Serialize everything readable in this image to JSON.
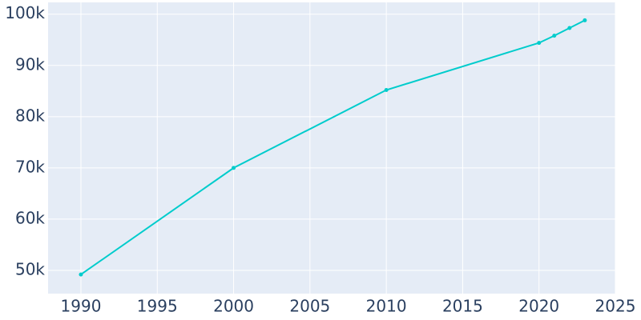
{
  "chart_data": {
    "type": "line",
    "x": [
      1990,
      2000,
      2010,
      2020,
      2021,
      2022,
      2023
    ],
    "series": [
      {
        "color": "#00cccc",
        "values": [
          49200,
          70000,
          85200,
          94400,
          95800,
          97300,
          98800
        ]
      }
    ],
    "xlim": [
      1987.85,
      2025
    ],
    "xticks": [
      1990,
      1995,
      2000,
      2005,
      2010,
      2015,
      2020,
      2025
    ],
    "ylim": [
      45470,
      102300
    ],
    "yticks": [
      {
        "value": 50000,
        "label": "50k"
      },
      {
        "value": 60000,
        "label": "60k"
      },
      {
        "value": 70000,
        "label": "70k"
      },
      {
        "value": 80000,
        "label": "80k"
      },
      {
        "value": 90000,
        "label": "90k"
      },
      {
        "value": 100000,
        "label": "100k"
      }
    ],
    "grid": true
  }
}
